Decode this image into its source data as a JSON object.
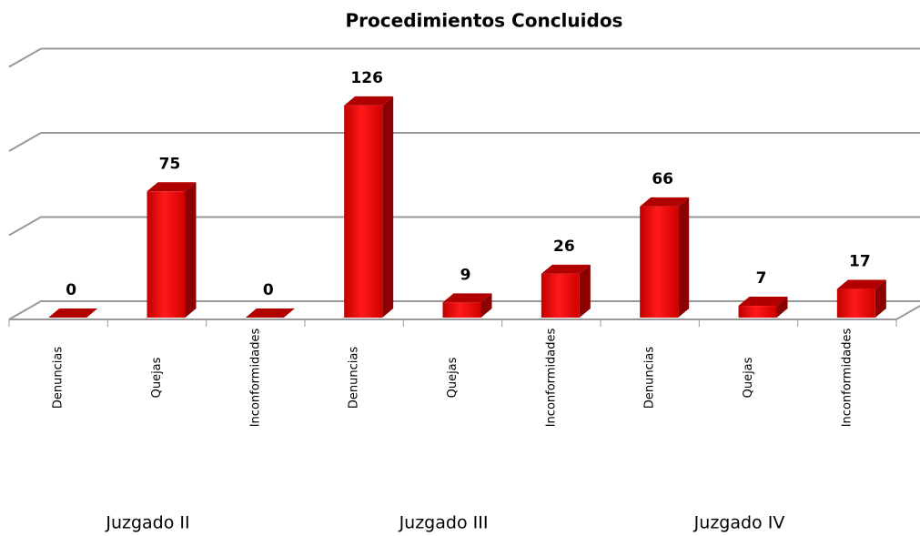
{
  "chart_data": {
    "type": "bar3d",
    "title": "Procedimientos Concluidos",
    "categories": [
      "Denuncias",
      "Quejas",
      "Inconformidades",
      "Denuncias",
      "Quejas",
      "Inconformidades",
      "Denuncias",
      "Quejas",
      "Inconformidades"
    ],
    "groups": [
      "Juzgado II",
      "Juzgado III",
      "Juzgado IV"
    ],
    "values": [
      0,
      75,
      0,
      126,
      9,
      26,
      66,
      7,
      17
    ],
    "color": "#ff0000",
    "ylim": [
      0,
      150
    ],
    "yticks": [
      0,
      50,
      100,
      150
    ],
    "grid": true
  }
}
